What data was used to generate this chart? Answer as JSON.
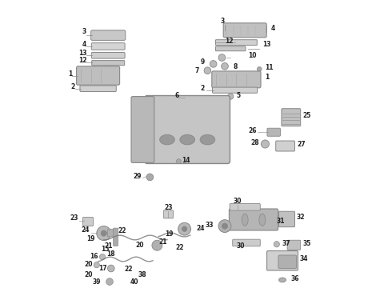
{
  "bg_color": "#ffffff",
  "line_color": "#888888",
  "text_color": "#222222",
  "fig_width": 4.9,
  "fig_height": 3.6,
  "dpi": 100
}
